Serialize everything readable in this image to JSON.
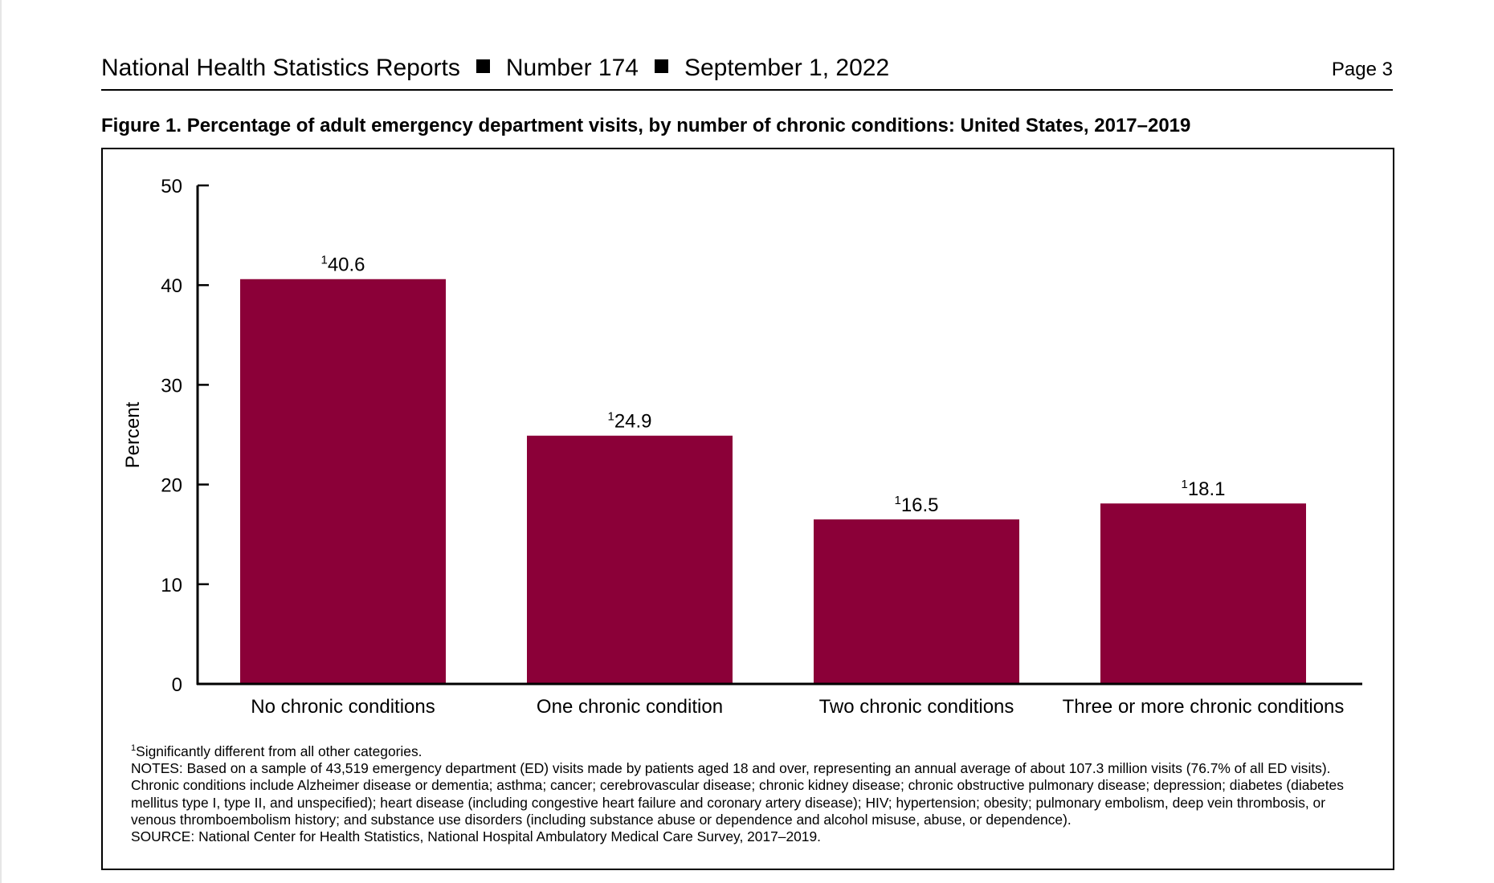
{
  "header": {
    "publication": "National Health Statistics Reports",
    "number": "Number 174",
    "date": "September 1, 2022",
    "page": "Page 3"
  },
  "figure": {
    "title": "Figure 1. Percentage of adult emergency department visits, by number of chronic conditions: United States, 2017–2019"
  },
  "chart_data": {
    "type": "bar",
    "categories": [
      "No chronic conditions",
      "One chronic condition",
      "Two chronic conditions",
      "Three or more chronic conditions"
    ],
    "values": [
      40.6,
      24.9,
      16.5,
      18.1
    ],
    "value_labels": [
      "40.6",
      "24.9",
      "16.5",
      "18.1"
    ],
    "label_superscript": "1",
    "xlabel": "",
    "ylabel": "Percent",
    "ylim": [
      0,
      50
    ],
    "yticks": [
      0,
      10,
      20,
      30,
      40,
      50
    ],
    "bar_color": "#8b0038",
    "grid": false,
    "legend": "none"
  },
  "notes": {
    "footnote_marker": "1",
    "footnote": "Significantly different from all other categories.",
    "notes_text": "NOTES: Based on a sample of 43,519 emergency department (ED) visits made by patients aged 18 and over, representing an annual average of about 107.3 million visits (76.7% of all ED visits). Chronic conditions include Alzheimer disease or dementia; asthma; cancer; cerebrovascular disease; chronic kidney disease; chronic obstructive pulmonary disease; depression; diabetes (diabetes mellitus type I, type II, and unspecified); heart disease (including congestive heart failure and coronary artery disease); HIV; hypertension; obesity; pulmonary embolism, deep vein thrombosis, or venous thromboembolism history; and substance use disorders (including substance abuse or dependence and alcohol misuse, abuse, or dependence).",
    "source": "SOURCE: National Center for Health Statistics, National Hospital Ambulatory Medical Care Survey, 2017–2019."
  }
}
